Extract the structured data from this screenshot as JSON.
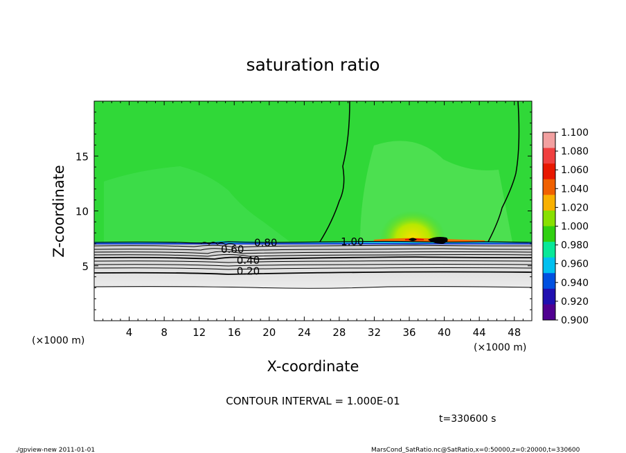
{
  "chart_data": {
    "type": "heatmap",
    "title": "saturation ratio",
    "xlabel": "X-coordinate",
    "ylabel": "Z-coordinate",
    "x_unit_left": "(×1000 m)",
    "x_unit_right": "(×1000 m)",
    "xlim": [
      0,
      50
    ],
    "ylim": [
      0,
      20
    ],
    "x_ticks": [
      4,
      8,
      12,
      16,
      20,
      24,
      28,
      32,
      36,
      40,
      44,
      48
    ],
    "y_ticks": [
      5,
      10,
      15
    ],
    "colorbar": {
      "levels": [
        "1.100",
        "1.080",
        "1.060",
        "1.040",
        "1.020",
        "1.000",
        "0.980",
        "0.960",
        "0.940",
        "0.920",
        "0.900"
      ],
      "colors": [
        "#f2a0a0",
        "#f04040",
        "#e81800",
        "#f06000",
        "#f8b000",
        "#88e000",
        "#30d010",
        "#08e898",
        "#00c0f0",
        "#0050e0",
        "#2010b0",
        "#500090"
      ]
    },
    "contour_labels": [
      {
        "text": "0.20",
        "x": 17.6,
        "z": 4.5
      },
      {
        "text": "0.40",
        "x": 17.6,
        "z": 5.5
      },
      {
        "text": "0.60",
        "x": 15.8,
        "z": 6.5
      },
      {
        "text": "0.80",
        "x": 19.6,
        "z": 7.1
      },
      {
        "text": "1.00",
        "x": 29.5,
        "z": 7.2
      }
    ],
    "contour_interval": "CONTOUR INTERVAL = 1.000E-01",
    "time_label": "t=330600 s"
  },
  "footer": {
    "left": "./gpview-new   2011-01-01",
    "right": "MarsCond_SatRatio.nc@SatRatio,x=0:50000,z=0:20000,t=330600"
  }
}
